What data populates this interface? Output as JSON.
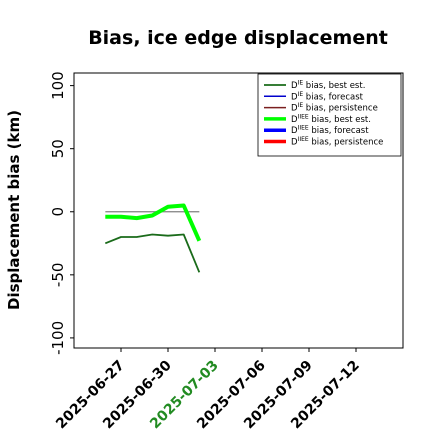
{
  "chart_data": {
    "type": "line",
    "title": "Bias, ice edge displacement",
    "xlabel": "",
    "ylabel": "Displacement bias (km)",
    "ylim": [
      -108,
      110
    ],
    "yticks": [
      100,
      50,
      0,
      -50,
      -100
    ],
    "xlim": [
      "2025-06-24",
      "2025-07-15"
    ],
    "xticks": [
      {
        "date": "2025-06-27",
        "label": "2025-06-27",
        "color": "#000000"
      },
      {
        "date": "2025-06-30",
        "label": "2025-06-30",
        "color": "#000000"
      },
      {
        "date": "2025-07-03",
        "label": "2025-07-03",
        "color": "#228b22"
      },
      {
        "date": "2025-07-06",
        "label": "2025-07-06",
        "color": "#000000"
      },
      {
        "date": "2025-07-09",
        "label": "2025-07-09",
        "color": "#000000"
      },
      {
        "date": "2025-07-12",
        "label": "2025-07-12",
        "color": "#000000"
      }
    ],
    "grid": false,
    "legend_position": "top-right",
    "series": [
      {
        "name": "D^IE bias, best est.",
        "sup": "IE",
        "label_rest": " bias, best est.",
        "color": "#1a6b1a",
        "width": 1.8,
        "x": [
          "2025-06-26",
          "2025-06-27",
          "2025-06-28",
          "2025-06-29",
          "2025-06-30",
          "2025-07-01",
          "2025-07-02"
        ],
        "y": [
          -25,
          -20,
          -20,
          -18,
          -19,
          -18,
          -48
        ]
      },
      {
        "name": "D^IE bias, forecast",
        "sup": "IE",
        "label_rest": " bias, forecast",
        "color": "#0000cc",
        "width": 1.5,
        "x": [],
        "y": []
      },
      {
        "name": "D^IE bias, persistence",
        "sup": "IE",
        "label_rest": " bias, persistence",
        "color": "#7a1f1f",
        "width": 1.5,
        "x": [],
        "y": []
      },
      {
        "name": "D^IIEE bias, best est.",
        "sup": "IIEE",
        "label_rest": " bias, best est.",
        "color": "#00ff00",
        "width": 4,
        "x": [
          "2025-06-26",
          "2025-06-27",
          "2025-06-28",
          "2025-06-29",
          "2025-06-30",
          "2025-07-01",
          "2025-07-02"
        ],
        "y": [
          -4,
          -4,
          -5,
          -3,
          4,
          5,
          -23
        ]
      },
      {
        "name": "D^IIEE bias, forecast",
        "sup": "IIEE",
        "label_rest": " bias, forecast",
        "color": "#0000ff",
        "width": 4,
        "x": [],
        "y": []
      },
      {
        "name": "D^IIEE bias, persistence",
        "sup": "IIEE",
        "label_rest": " bias, persistence",
        "color": "#ff0000",
        "width": 4,
        "x": [],
        "y": []
      }
    ],
    "reference_line": {
      "y": 0,
      "color": "#808080",
      "x": [
        "2025-06-26",
        "2025-07-02"
      ]
    }
  }
}
